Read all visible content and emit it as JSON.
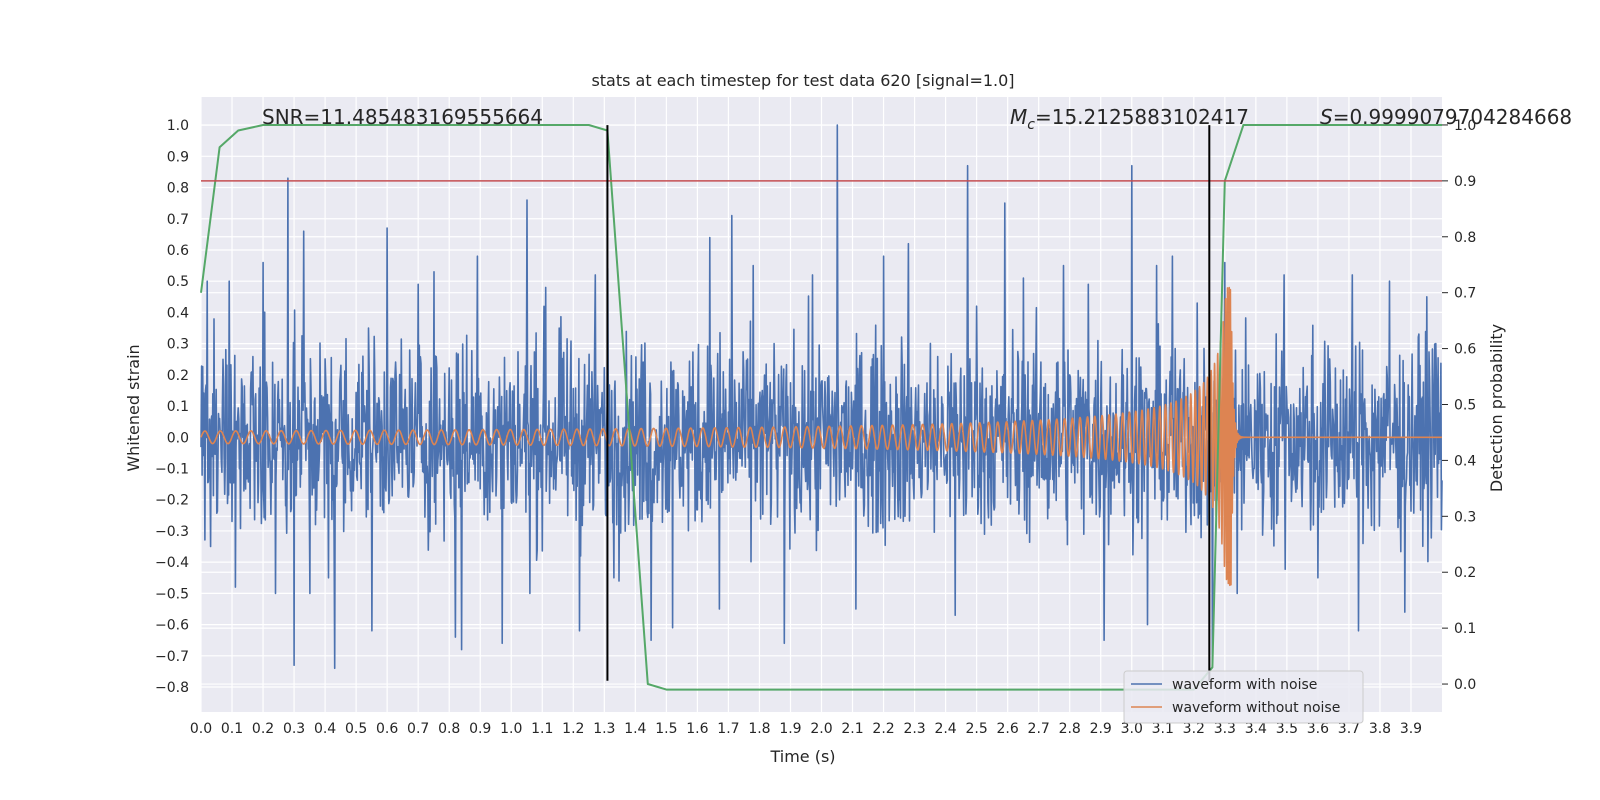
{
  "chart_data": {
    "type": "line",
    "title": "stats at each timestep for test data 620 [signal=1.0]",
    "xlabel": "Time (s)",
    "ylabel_left": "Whitened strain",
    "ylabel_right": "Detection probability",
    "xlim": [
      0.0,
      4.0
    ],
    "ylim_left": [
      -0.88,
      1.09
    ],
    "ylim_right": [
      -0.05,
      1.05
    ],
    "x_ticks": [
      0.0,
      0.1,
      0.2,
      0.3,
      0.4,
      0.5,
      0.6,
      0.7,
      0.8,
      0.9,
      1.0,
      1.1,
      1.2,
      1.3,
      1.4,
      1.5,
      1.6,
      1.7,
      1.8,
      1.9,
      2.0,
      2.1,
      2.2,
      2.3,
      2.4,
      2.5,
      2.6,
      2.7,
      2.8,
      2.9,
      3.0,
      3.1,
      3.2,
      3.3,
      3.4,
      3.5,
      3.6,
      3.7,
      3.8,
      3.9
    ],
    "x_tick_labels": [
      "0.0",
      "0.1",
      "0.2",
      "0.3",
      "0.4",
      "0.5",
      "0.6",
      "0.7",
      "0.8",
      "0.9",
      "1.0",
      "1.1",
      "1.2",
      "1.3",
      "1.4",
      "1.5",
      "1.6",
      "1.7",
      "1.8",
      "1.9",
      "2.0",
      "2.1",
      "2.2",
      "2.3",
      "2.4",
      "2.5",
      "2.6",
      "2.7",
      "2.8",
      "2.9",
      "3.0",
      "3.1",
      "3.2",
      "3.3",
      "3.4",
      "3.5",
      "3.6",
      "3.7",
      "3.8",
      "3.9"
    ],
    "y_left_ticks": [
      -0.8,
      -0.7,
      -0.6,
      -0.5,
      -0.4,
      -0.3,
      -0.2,
      -0.1,
      0.0,
      0.1,
      0.2,
      0.3,
      0.4,
      0.5,
      0.6,
      0.7,
      0.8,
      0.9,
      1.0
    ],
    "y_left_tick_labels": [
      "−0.8",
      "−0.7",
      "−0.6",
      "−0.5",
      "−0.4",
      "−0.3",
      "−0.2",
      "−0.1",
      "0.0",
      "0.1",
      "0.2",
      "0.3",
      "0.4",
      "0.5",
      "0.6",
      "0.7",
      "0.8",
      "0.9",
      "1.0"
    ],
    "y_right_ticks": [
      0.0,
      0.1,
      0.2,
      0.3,
      0.4,
      0.5,
      0.6,
      0.7,
      0.8,
      0.9,
      1.0
    ],
    "y_right_tick_labels": [
      "0.0",
      "0.1",
      "0.2",
      "0.3",
      "0.4",
      "0.5",
      "0.6",
      "0.7",
      "0.8",
      "0.9",
      "1.0"
    ],
    "grid": true,
    "background": "#eaeaf2",
    "annotations": {
      "snr": "SNR=11.485483169555664",
      "mc_symbol": "M",
      "mc_sub": "c",
      "mc_value": "=15.2125883102417",
      "s_symbol": "S",
      "s_value": "=0.9999079704284668"
    },
    "series": [
      {
        "name": "waveform with noise",
        "axis": "left",
        "color": "#4c72b0",
        "style": "noise",
        "approx_envelope": [
          -0.28,
          0.28
        ],
        "peaks": [
          [
            0.02,
            0.5
          ],
          [
            0.03,
            -0.35
          ],
          [
            0.09,
            0.5
          ],
          [
            0.11,
            -0.48
          ],
          [
            0.2,
            0.56
          ],
          [
            0.24,
            -0.5
          ],
          [
            0.28,
            0.83
          ],
          [
            0.3,
            -0.73
          ],
          [
            0.33,
            0.66
          ],
          [
            0.35,
            -0.5
          ],
          [
            0.41,
            -0.45
          ],
          [
            0.43,
            -0.74
          ],
          [
            0.54,
            0.35
          ],
          [
            0.55,
            -0.62
          ],
          [
            0.6,
            0.67
          ],
          [
            0.7,
            0.49
          ],
          [
            0.75,
            0.53
          ],
          [
            0.82,
            -0.64
          ],
          [
            0.84,
            -0.68
          ],
          [
            0.89,
            0.58
          ],
          [
            0.97,
            -0.66
          ],
          [
            1.05,
            0.76
          ],
          [
            1.06,
            -0.5
          ],
          [
            1.11,
            0.48
          ],
          [
            1.22,
            -0.62
          ],
          [
            1.27,
            0.52
          ],
          [
            1.31,
            0.54
          ],
          [
            1.33,
            -0.45
          ],
          [
            1.45,
            -0.65
          ],
          [
            1.52,
            -0.61
          ],
          [
            1.64,
            0.64
          ],
          [
            1.67,
            -0.55
          ],
          [
            1.71,
            0.71
          ],
          [
            1.78,
            0.55
          ],
          [
            1.88,
            -0.66
          ],
          [
            1.97,
            0.52
          ],
          [
            2.05,
            1.0
          ],
          [
            2.11,
            -0.55
          ],
          [
            2.2,
            0.58
          ],
          [
            2.28,
            0.62
          ],
          [
            2.43,
            -0.57
          ],
          [
            2.47,
            0.87
          ],
          [
            2.5,
            0.42
          ],
          [
            2.59,
            0.75
          ],
          [
            2.65,
            0.51
          ],
          [
            2.78,
            0.55
          ],
          [
            2.86,
            0.49
          ],
          [
            2.91,
            -0.65
          ],
          [
            3.0,
            0.87
          ],
          [
            3.05,
            -0.6
          ],
          [
            3.08,
            0.55
          ],
          [
            3.13,
            0.58
          ],
          [
            3.21,
            0.43
          ],
          [
            3.26,
            -0.72
          ],
          [
            3.3,
            0.56
          ],
          [
            3.34,
            -0.5
          ],
          [
            3.49,
            0.52
          ],
          [
            3.6,
            -0.45
          ],
          [
            3.71,
            0.52
          ],
          [
            3.73,
            -0.62
          ],
          [
            3.83,
            0.5
          ],
          [
            3.88,
            -0.56
          ],
          [
            3.95,
            0.45
          ],
          [
            3.98,
            0.3
          ]
        ]
      },
      {
        "name": "waveform without noise",
        "axis": "left",
        "color": "#dd8452",
        "style": "chirp",
        "merger_time": 3.32,
        "amplitude_start": 0.02,
        "amplitude_peak": 0.48,
        "freq_start_hz": 20
      },
      {
        "name": "",
        "axis": "right",
        "color": "#55a868",
        "x": [
          0.0,
          0.06,
          0.12,
          0.2,
          0.3,
          0.5,
          1.0,
          1.25,
          1.31,
          1.44,
          1.5,
          2.0,
          3.0,
          3.2,
          3.26,
          3.3,
          3.36,
          3.5,
          4.0
        ],
        "y": [
          0.7,
          0.96,
          0.99,
          1.0,
          1.0,
          1.0,
          1.0,
          1.0,
          0.99,
          0.0,
          -0.01,
          -0.01,
          -0.01,
          -0.01,
          0.03,
          0.9,
          1.0,
          1.0,
          1.0
        ]
      }
    ],
    "hlines": [
      {
        "axis": "right",
        "y": 0.9,
        "color": "#c44e52"
      }
    ],
    "vlines": [
      {
        "x": 1.31,
        "color": "#000000",
        "y_left_range": [
          -0.78,
          1.0
        ]
      },
      {
        "x": 3.25,
        "color": "#000000",
        "y_left_range": [
          -0.78,
          1.0
        ]
      }
    ],
    "legend": {
      "placement": "lower-right",
      "entries": [
        {
          "label": "waveform with noise",
          "color": "#4c72b0"
        },
        {
          "label": "waveform without noise",
          "color": "#dd8452"
        }
      ]
    }
  }
}
